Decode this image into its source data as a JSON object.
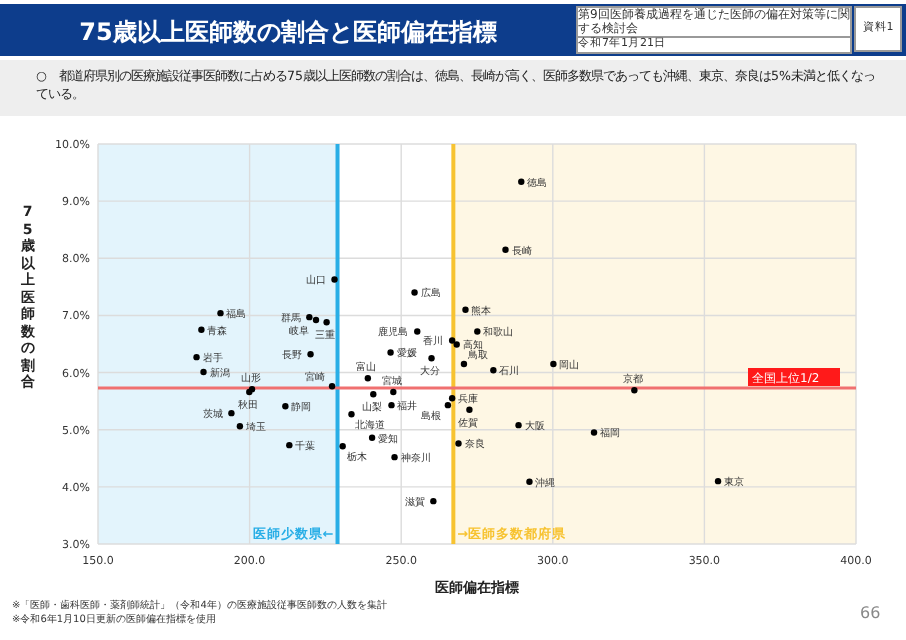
{
  "chart_data": {
    "type": "scatter",
    "title": "75歳以上医師数の割合と医師偏在指標",
    "subtitle": "○　都道府県別の医療施設従事医師数に占める75歳以上医師数の割合は、徳島、長崎が高く、医師多数県であっても沖縄、東京、奈良は5%未満と低くなっている。",
    "xlabel": "医師偏在指標",
    "ylabel": "75歳以上医師数の割合",
    "xlim": [
      150,
      400
    ],
    "xticks": [
      {
        "value": 150,
        "label": "150.0"
      },
      {
        "value": 200,
        "label": "200.0"
      },
      {
        "value": 250,
        "label": "250.0"
      },
      {
        "value": 300,
        "label": "300.0"
      },
      {
        "value": 350,
        "label": "350.0"
      },
      {
        "value": 400,
        "label": "400.0"
      }
    ],
    "ylim": [
      3,
      10
    ],
    "yticks": [
      {
        "value": 3,
        "label": "3.0%"
      },
      {
        "value": 4,
        "label": "4.0%"
      },
      {
        "value": 5,
        "label": "5.0%"
      },
      {
        "value": 6,
        "label": "6.0%"
      },
      {
        "value": 7,
        "label": "7.0%"
      },
      {
        "value": 8,
        "label": "8.0%"
      },
      {
        "value": 9,
        "label": "9.0%"
      },
      {
        "value": 10,
        "label": "10.0%"
      }
    ],
    "grid": true,
    "marker": "circle",
    "color": "#000000",
    "x": [
      233.6,
      184.1,
      182.5,
      247.4,
      199.9,
      200.8,
      190.4,
      194.0,
      230.7,
      219.7,
      196.8,
      213.1,
      354.5,
      247.8,
      184.8,
      239.0,
      280.4,
      246.8,
      240.8,
      220.1,
      221.9,
      211.8,
      240.4,
      225.4,
      260.6,
      326.9,
      288.7,
      266.8,
      268.9,
      275.1,
      270.7,
      265.4,
      300.2,
      254.4,
      228.0,
      289.6,
      266.8,
      246.5,
      268.3,
      313.6,
      272.5,
      284.4,
      271.2,
      260.0,
      227.2,
      255.3,
      292.3
    ],
    "values": [
      5.27,
      6.75,
      6.27,
      5.66,
      5.66,
      5.71,
      7.04,
      5.29,
      4.71,
      6.97,
      5.06,
      4.73,
      4.1,
      4.52,
      6.01,
      5.9,
      6.04,
      5.43,
      5.62,
      6.32,
      6.92,
      5.41,
      4.86,
      6.88,
      3.75,
      5.69,
      5.08,
      5.55,
      4.76,
      6.72,
      6.15,
      5.43,
      6.15,
      7.4,
      7.63,
      9.34,
      6.56,
      6.35,
      6.49,
      4.95,
      5.35,
      8.15,
      7.1,
      6.25,
      5.76,
      6.72,
      4.09
    ],
    "bands": [
      {
        "axis": "x",
        "from": 150,
        "to": 229.0,
        "color": "#e3f4fc"
      },
      {
        "axis": "x",
        "from": 267.2,
        "to": 400,
        "color": "#fef7e4"
      }
    ],
    "ref_lines": [
      {
        "axis": "y",
        "value": 5.73,
        "label": "全国上位1/2",
        "color": "#f07070"
      },
      {
        "axis": "x",
        "value": 229.0,
        "label": "医師少数県←",
        "color": "#29aee6"
      },
      {
        "axis": "x",
        "value": 267.2,
        "label": "→医師多数都府県",
        "color": "#f7c331"
      }
    ],
    "annotations": [
      "第9回医師養成過程を通じた医師の偏在対策等に関する検討会",
      "令和7年1月21日",
      "資料1",
      "※「医師・歯科医師・薬剤師統計」（令和4年）の医療施設従事医師数の人数を集計",
      "※令和6年1月10日更新の医師偏在指標を使用",
      "66",
      {
        "text": "北海道",
        "x": 233.6,
        "y": 5.27
      },
      {
        "text": "青森",
        "x": 184.1,
        "y": 6.75
      },
      {
        "text": "岩手",
        "x": 182.5,
        "y": 6.27
      },
      {
        "text": "宮城",
        "x": 247.4,
        "y": 5.66
      },
      {
        "text": "秋田",
        "x": 199.9,
        "y": 5.66
      },
      {
        "text": "山形",
        "x": 200.8,
        "y": 5.71
      },
      {
        "text": "福島",
        "x": 190.4,
        "y": 7.04
      },
      {
        "text": "茨城",
        "x": 194.0,
        "y": 5.29
      },
      {
        "text": "栃木",
        "x": 230.7,
        "y": 4.71
      },
      {
        "text": "群馬",
        "x": 219.7,
        "y": 6.97
      },
      {
        "text": "埼玉",
        "x": 196.8,
        "y": 5.06
      },
      {
        "text": "千葉",
        "x": 213.1,
        "y": 4.73
      },
      {
        "text": "東京",
        "x": 354.5,
        "y": 4.1
      },
      {
        "text": "神奈川",
        "x": 247.8,
        "y": 4.52
      },
      {
        "text": "新潟",
        "x": 184.8,
        "y": 6.01
      },
      {
        "text": "富山",
        "x": 239.0,
        "y": 5.9
      },
      {
        "text": "石川",
        "x": 280.4,
        "y": 6.04
      },
      {
        "text": "福井",
        "x": 246.8,
        "y": 5.43
      },
      {
        "text": "山梨",
        "x": 240.8,
        "y": 5.62
      },
      {
        "text": "長野",
        "x": 220.1,
        "y": 6.32
      },
      {
        "text": "岐阜",
        "x": 221.9,
        "y": 6.92
      },
      {
        "text": "静岡",
        "x": 211.8,
        "y": 5.41
      },
      {
        "text": "愛知",
        "x": 240.4,
        "y": 4.86
      },
      {
        "text": "三重",
        "x": 225.4,
        "y": 6.88
      },
      {
        "text": "滋賀",
        "x": 260.6,
        "y": 3.75
      },
      {
        "text": "京都",
        "x": 326.9,
        "y": 5.69
      },
      {
        "text": "大阪",
        "x": 288.7,
        "y": 5.08
      },
      {
        "text": "兵庫",
        "x": 266.8,
        "y": 5.55
      },
      {
        "text": "奈良",
        "x": 268.9,
        "y": 4.76
      },
      {
        "text": "和歌山",
        "x": 275.1,
        "y": 6.72
      },
      {
        "text": "鳥取",
        "x": 270.7,
        "y": 6.15
      },
      {
        "text": "島根",
        "x": 265.4,
        "y": 5.43
      },
      {
        "text": "岡山",
        "x": 300.2,
        "y": 6.15
      },
      {
        "text": "広島",
        "x": 254.4,
        "y": 7.4
      },
      {
        "text": "山口",
        "x": 228.0,
        "y": 7.63
      },
      {
        "text": "徳島",
        "x": 289.6,
        "y": 9.34
      },
      {
        "text": "香川",
        "x": 266.8,
        "y": 6.56
      },
      {
        "text": "愛媛",
        "x": 246.5,
        "y": 6.35
      },
      {
        "text": "高知",
        "x": 268.3,
        "y": 6.49
      },
      {
        "text": "福岡",
        "x": 313.6,
        "y": 4.95
      },
      {
        "text": "佐賀",
        "x": 272.5,
        "y": 5.35
      },
      {
        "text": "長崎",
        "x": 284.4,
        "y": 8.15
      },
      {
        "text": "熊本",
        "x": 271.2,
        "y": 7.1
      },
      {
        "text": "大分",
        "x": 260.0,
        "y": 6.25
      },
      {
        "text": "宮崎",
        "x": 227.2,
        "y": 5.76
      },
      {
        "text": "鹿児島",
        "x": 255.3,
        "y": 6.72
      },
      {
        "text": "沖縄",
        "x": 292.3,
        "y": 4.09
      }
    ]
  }
}
